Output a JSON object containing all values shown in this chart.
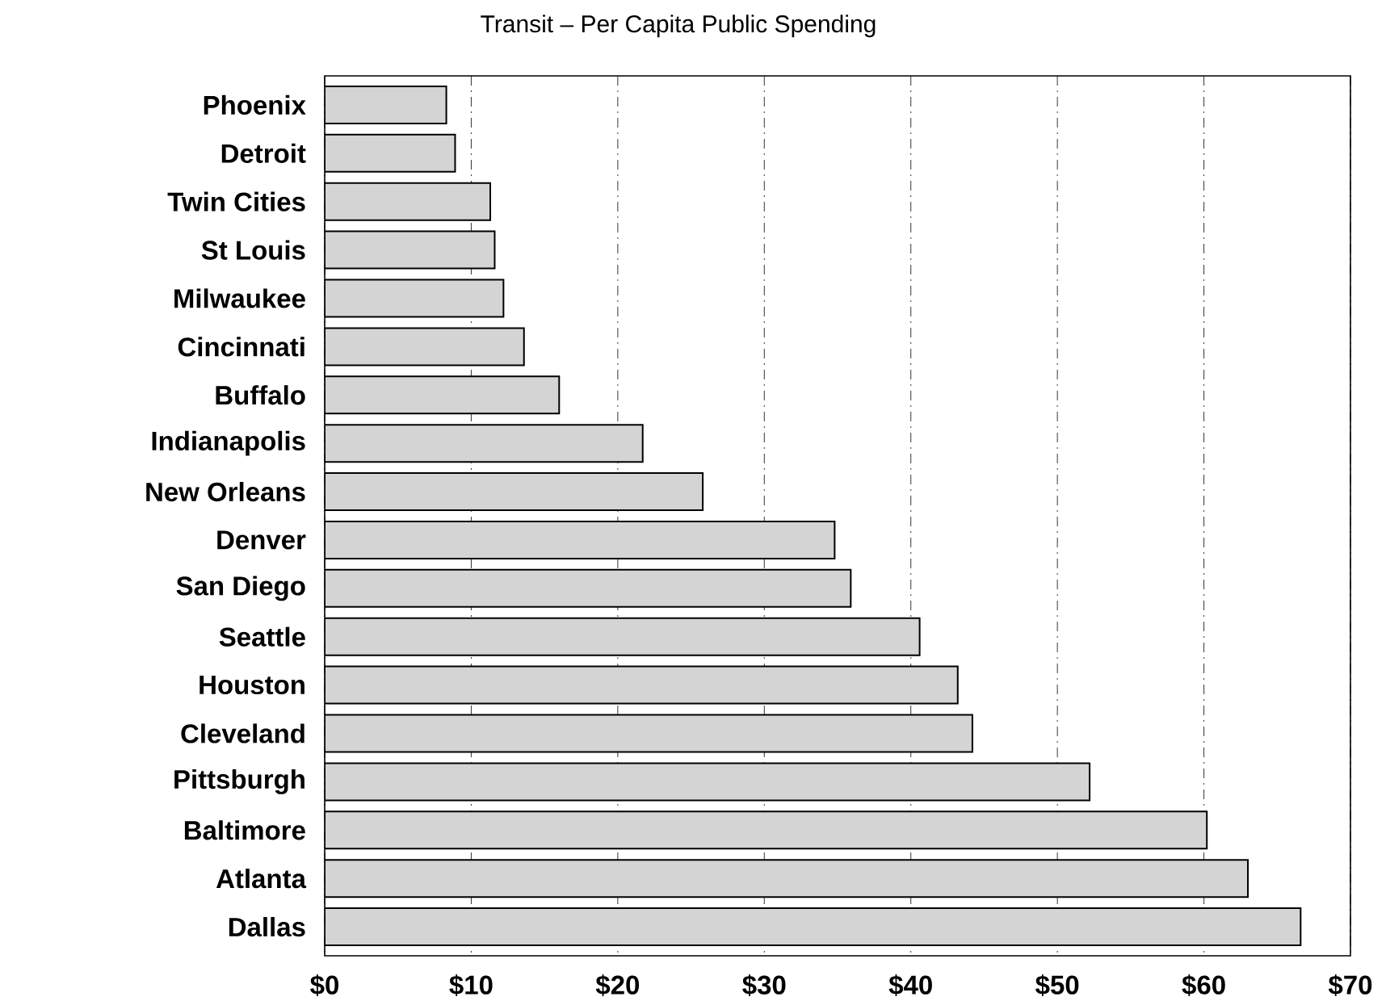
{
  "chart_data": {
    "type": "bar",
    "orientation": "horizontal",
    "title": "Transit – Per Capita Public Spending",
    "categories": [
      "Phoenix",
      "Detroit",
      "Twin Cities",
      "St Louis",
      "Milwaukee",
      "Cincinnati",
      "Buffalo",
      "Indianapolis",
      "New Orleans",
      "Denver",
      "San Diego",
      "Seattle",
      "Houston",
      "Cleveland",
      "Pittsburgh",
      "Baltimore",
      "Atlanta",
      "Dallas"
    ],
    "values": [
      8.3,
      8.9,
      11.3,
      11.6,
      12.2,
      13.6,
      16.0,
      21.7,
      25.8,
      34.8,
      35.9,
      40.6,
      43.2,
      44.2,
      52.2,
      60.2,
      63.0,
      66.6
    ],
    "color": "#d4d4d4",
    "xlim": [
      0,
      70
    ],
    "xticks": [
      {
        "value": 0,
        "label": "$0"
      },
      {
        "value": 10,
        "label": "$10"
      },
      {
        "value": 20,
        "label": "$20"
      },
      {
        "value": 30,
        "label": "$30"
      },
      {
        "value": 40,
        "label": "$40"
      },
      {
        "value": 50,
        "label": "$50"
      },
      {
        "value": 60,
        "label": "$60"
      },
      {
        "value": 70,
        "label": "$70"
      }
    ],
    "grid": "x",
    "line_style": "dashed"
  }
}
